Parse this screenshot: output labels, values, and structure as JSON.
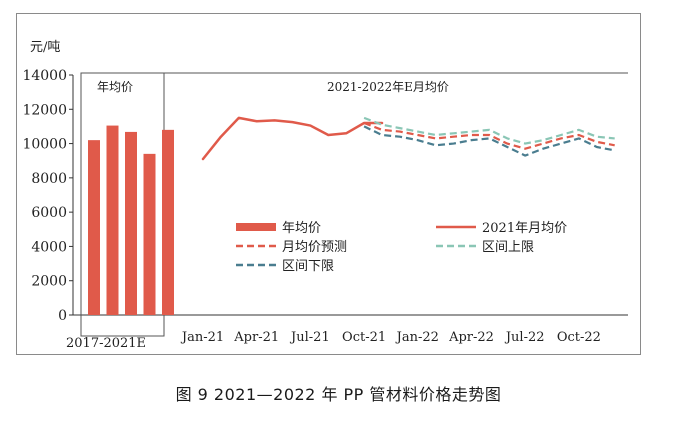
{
  "chart_data": {
    "type": "bar",
    "unit_label": "元/吨",
    "y_ticks": [
      "0",
      "2000",
      "4000",
      "6000",
      "8000",
      "10000",
      "12000",
      "14000"
    ],
    "ylim": [
      0,
      14000
    ],
    "annual_panel": {
      "title": "年均价",
      "xlabel": "2017-2021E",
      "values": [
        10200,
        11050,
        10680,
        9400,
        10800
      ]
    },
    "monthly_panel": {
      "title": "2021-2022年E月均价",
      "x_ticks": [
        "Jan-21",
        "Apr-21",
        "Jul-21",
        "Oct-21",
        "Jan-22",
        "Apr-22",
        "Jul-22",
        "Oct-22"
      ],
      "series": [
        {
          "name": "年均价",
          "color": "#e05a4a",
          "style": "bar"
        },
        {
          "name": "2021年月均价",
          "color": "#e05a4a",
          "style": "solid",
          "x": [
            0,
            1,
            2,
            3,
            4,
            5,
            6,
            7,
            8,
            9,
            10
          ],
          "values": [
            9100,
            10400,
            11500,
            11300,
            11350,
            11250,
            11050,
            10500,
            10600,
            11200,
            11200
          ]
        },
        {
          "name": "月均价预测",
          "color": "#e05a4a",
          "style": "dashed",
          "x": [
            9,
            10,
            11,
            12,
            13,
            14,
            15,
            16,
            17,
            18,
            19,
            20,
            21,
            22,
            23
          ],
          "values": [
            11200,
            10800,
            10700,
            10500,
            10300,
            10400,
            10500,
            10500,
            10000,
            9700,
            10000,
            10300,
            10500,
            10100,
            9900
          ]
        },
        {
          "name": "区间上限",
          "color": "#8ac6b5",
          "style": "dashed",
          "x": [
            9,
            10,
            11,
            12,
            13,
            14,
            15,
            16,
            17,
            18,
            19,
            20,
            21,
            22,
            23
          ],
          "values": [
            11500,
            11100,
            10900,
            10700,
            10500,
            10600,
            10700,
            10800,
            10300,
            10000,
            10200,
            10500,
            10800,
            10400,
            10300
          ]
        },
        {
          "name": "区间下限",
          "color": "#4a7d8f",
          "style": "dashed",
          "x": [
            9,
            10,
            11,
            12,
            13,
            14,
            15,
            16,
            17,
            18,
            19,
            20,
            21,
            22,
            23
          ],
          "values": [
            11000,
            10500,
            10400,
            10200,
            9900,
            10000,
            10200,
            10300,
            9800,
            9300,
            9700,
            10000,
            10300,
            9800,
            9600
          ]
        }
      ]
    },
    "grid": false,
    "legend_position": "center"
  },
  "caption": "图 9  2021—2022 年 PP 管材料价格走势图"
}
